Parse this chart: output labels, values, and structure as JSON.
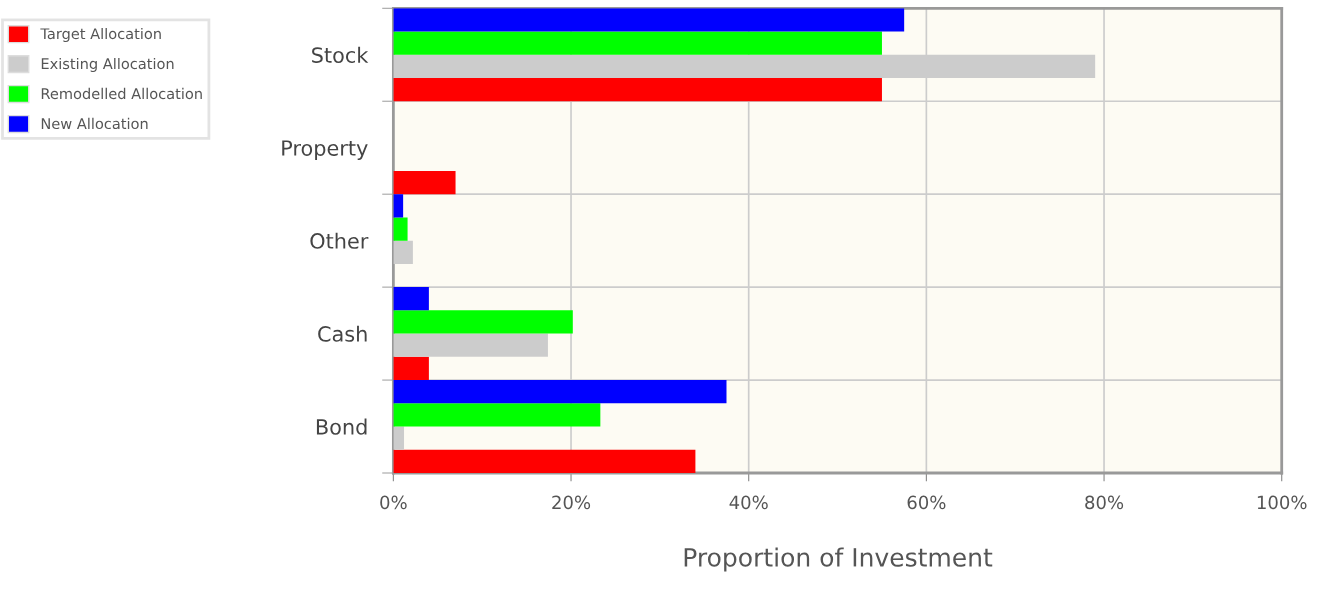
{
  "chart_data": {
    "type": "bar",
    "orientation": "horizontal",
    "xlabel": "Proportion of Investment",
    "categories": [
      "Stock",
      "Property",
      "Other",
      "Cash",
      "Bond"
    ],
    "series": [
      {
        "name": "Target Allocation",
        "color": "#ff0000",
        "values": [
          55,
          7,
          0,
          4,
          34
        ]
      },
      {
        "name": "Existing Allocation",
        "color": "#cccccc",
        "values": [
          79,
          0,
          2.2,
          17.4,
          1.2
        ]
      },
      {
        "name": "Remodelled Allocation",
        "color": "#00ff00",
        "values": [
          55,
          0,
          1.6,
          20.2,
          23.3
        ]
      },
      {
        "name": "New Allocation",
        "color": "#0000ff",
        "values": [
          57.5,
          0,
          1.1,
          4,
          37.5
        ]
      }
    ],
    "xlim": [
      0,
      100
    ],
    "xticks": [
      {
        "value": 0,
        "label": "0%"
      },
      {
        "value": 20,
        "label": "20%"
      },
      {
        "value": 40,
        "label": "40%"
      },
      {
        "value": 60,
        "label": "60%"
      },
      {
        "value": 80,
        "label": "80%"
      },
      {
        "value": 100,
        "label": "100%"
      }
    ],
    "grid": "x",
    "legend": "top left"
  }
}
